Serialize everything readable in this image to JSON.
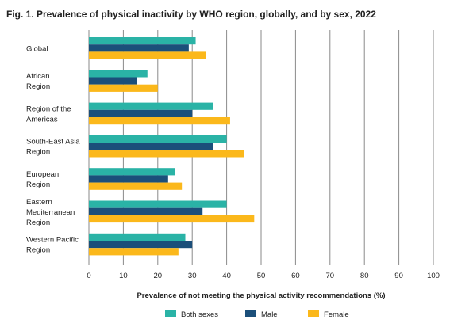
{
  "chart_data": {
    "type": "bar",
    "orientation": "horizontal",
    "title": "Fig. 1. Prevalence of physical inactivity by WHO region, globally, and by sex, 2022",
    "xlabel": "Prevalence of not meeting the physical activity recommendations (%)",
    "ylabel": "",
    "xlim": [
      0,
      100
    ],
    "xticks": [
      0,
      10,
      20,
      30,
      40,
      50,
      60,
      70,
      80,
      90,
      100
    ],
    "grid": true,
    "legend_position": "bottom",
    "categories": [
      [
        "Global"
      ],
      [
        "African",
        "Region"
      ],
      [
        "Region of the",
        "Americas"
      ],
      [
        "South-East Asia",
        "Region"
      ],
      [
        "European",
        "Region"
      ],
      [
        "Eastern",
        "Mediterranean",
        "Region"
      ],
      [
        "Western Pacific",
        "Region"
      ]
    ],
    "series": [
      {
        "name": "Both sexes",
        "color": "#2ab3a6",
        "values": [
          31,
          17,
          36,
          40,
          25,
          40,
          28
        ]
      },
      {
        "name": "Male",
        "color": "#1b4f7a",
        "values": [
          29,
          14,
          30,
          36,
          23,
          33,
          30
        ]
      },
      {
        "name": "Female",
        "color": "#fbb81b",
        "values": [
          34,
          20,
          41,
          45,
          27,
          48,
          26
        ]
      }
    ]
  }
}
